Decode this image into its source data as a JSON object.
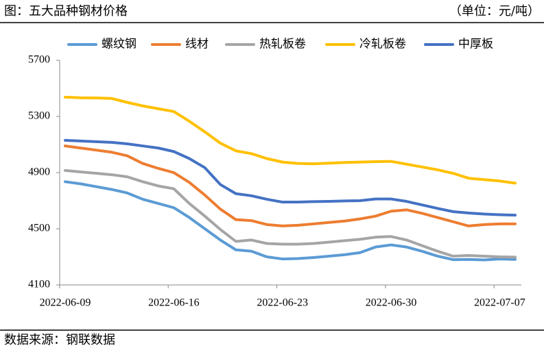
{
  "chart_data": {
    "type": "line",
    "title": "图：五大品种钢材价格",
    "unit": "（单位：元/吨）",
    "source": "数据来源：钢联数据",
    "categories": [
      "2022-06-09",
      null,
      null,
      null,
      null,
      null,
      null,
      "2022-06-16",
      null,
      null,
      null,
      null,
      null,
      null,
      "2022-06-23",
      null,
      null,
      null,
      null,
      null,
      null,
      "2022-06-30",
      null,
      null,
      null,
      null,
      null,
      null,
      "2022-07-07",
      null
    ],
    "series": [
      {
        "name": "螺纹钢",
        "color": "#5b9bd5",
        "values": [
          4835,
          4820,
          4800,
          4780,
          4755,
          4710,
          4680,
          4650,
          4580,
          4500,
          4420,
          4350,
          4340,
          4300,
          4285,
          4288,
          4295,
          4305,
          4315,
          4330,
          4370,
          4385,
          4370,
          4340,
          4305,
          4280,
          4282,
          4278,
          4285,
          4282
        ]
      },
      {
        "name": "线材",
        "color": "#ed7d31",
        "values": [
          5090,
          5075,
          5060,
          5045,
          5020,
          4965,
          4930,
          4900,
          4830,
          4740,
          4640,
          4565,
          4558,
          4530,
          4520,
          4525,
          4535,
          4545,
          4555,
          4570,
          4590,
          4625,
          4635,
          4610,
          4580,
          4550,
          4520,
          4530,
          4535,
          4535
        ]
      },
      {
        "name": "热轧板卷",
        "color": "#a5a5a5",
        "values": [
          4915,
          4905,
          4895,
          4885,
          4870,
          4835,
          4805,
          4785,
          4680,
          4590,
          4495,
          4410,
          4420,
          4395,
          4390,
          4390,
          4395,
          4405,
          4415,
          4425,
          4440,
          4445,
          4420,
          4380,
          4340,
          4305,
          4310,
          4305,
          4300,
          4298
        ]
      },
      {
        "name": "冷轧板卷",
        "color": "#ffc000",
        "values": [
          5437,
          5433,
          5432,
          5428,
          5400,
          5375,
          5355,
          5335,
          5266,
          5190,
          5110,
          5055,
          5035,
          5000,
          4975,
          4965,
          4963,
          4967,
          4972,
          4975,
          4978,
          4980,
          4960,
          4940,
          4920,
          4895,
          4860,
          4850,
          4840,
          4825
        ]
      },
      {
        "name": "中厚板",
        "color": "#4472c4",
        "values": [
          5130,
          5125,
          5120,
          5115,
          5105,
          5090,
          5075,
          5050,
          5000,
          4935,
          4815,
          4750,
          4735,
          4710,
          4690,
          4690,
          4693,
          4695,
          4698,
          4700,
          4712,
          4712,
          4695,
          4670,
          4645,
          4622,
          4612,
          4605,
          4600,
          4597
        ]
      }
    ],
    "ylim": [
      4100,
      5700
    ],
    "yticks": [
      4100,
      4500,
      4900,
      5300,
      5700
    ],
    "grid": false
  }
}
